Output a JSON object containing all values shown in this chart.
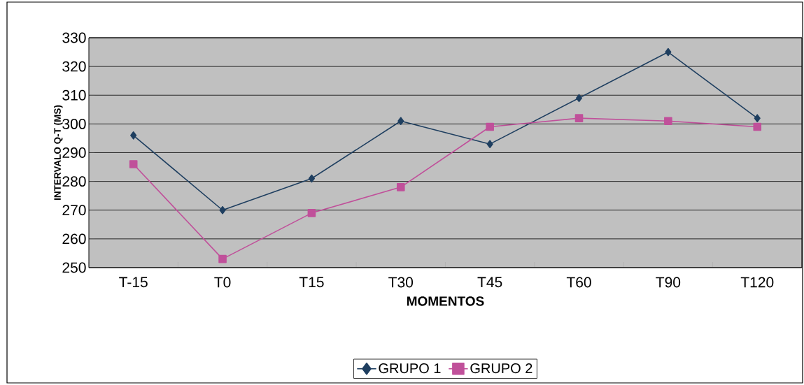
{
  "chart_data": {
    "type": "line",
    "xlabel": "MOMENTOS",
    "ylabel": "INTERVALO Q-T (MS)",
    "categories": [
      "T-15",
      "T0",
      "T15",
      "T30",
      "T45",
      "T60",
      "T90",
      "T120"
    ],
    "series": [
      {
        "name": "GRUPO 1",
        "color": "#1f3f60",
        "marker": "diamond",
        "values": [
          296,
          270,
          281,
          301,
          293,
          309,
          325,
          302
        ]
      },
      {
        "name": "GRUPO 2",
        "color": "#c0509a",
        "marker": "square",
        "values": [
          286,
          253,
          269,
          278,
          299,
          302,
          301,
          299
        ]
      }
    ],
    "ylim": [
      250,
      330
    ],
    "yticks": [
      250,
      260,
      270,
      280,
      290,
      300,
      310,
      320,
      330
    ],
    "grid": "y",
    "legend": "bottom",
    "line_style": "solid"
  }
}
